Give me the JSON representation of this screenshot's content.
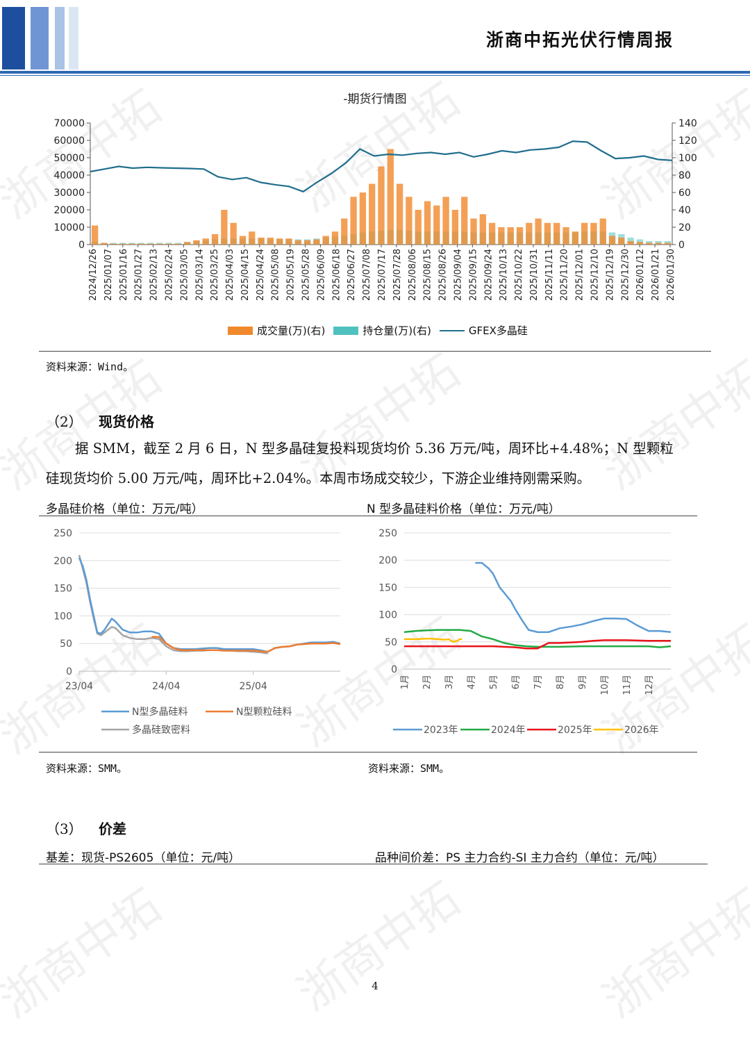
{
  "header": {
    "title": "浙商中拓光伏行情周报"
  },
  "watermark": {
    "text": "浙商中拓"
  },
  "futures_chart": {
    "title": "-期货行情图",
    "source": "资料来源：Wind。",
    "legend": [
      "成交量(万)(右)",
      "持仓量(万)(右)",
      "GFEX多晶硅"
    ],
    "chart_data": {
      "type": "line",
      "x_ticks": [
        "2024/12/26",
        "2025/01/07",
        "2025/01/16",
        "2025/01/27",
        "2025/02/13",
        "2025/02/24",
        "2025/03/05",
        "2025/03/14",
        "2025/03/25",
        "2025/04/03",
        "2025/04/15",
        "2025/04/24",
        "2025/05/08",
        "2025/05/19",
        "2025/05/28",
        "2025/06/09",
        "2025/06/18",
        "2025/06/27",
        "2025/07/08",
        "2025/07/17",
        "2025/07/28",
        "2025/08/06",
        "2025/08/15",
        "2025/08/26",
        "2025/09/04",
        "2025/09/15",
        "2025/09/24",
        "2025/10/13",
        "2025/10/22",
        "2025/10/31",
        "2025/11/11",
        "2025/11/20",
        "2025/12/01",
        "2025/12/10",
        "2025/12/19",
        "2025/12/30",
        "2026/01/12",
        "2026/01/21",
        "2026/01/30"
      ],
      "y_left_ticks": [
        "0",
        "10000",
        "20000",
        "30000",
        "40000",
        "50000",
        "60000",
        "70000"
      ],
      "y_right_ticks": [
        "0",
        "20",
        "40",
        "60",
        "80",
        "100",
        "120",
        "140"
      ],
      "ylim_left": [
        0,
        70000
      ],
      "ylim_right": [
        0,
        140
      ],
      "series": [
        {
          "name": "GFEX多晶硅",
          "axis": "left",
          "color": "#1f6e8c",
          "values": [
            42000,
            43500,
            45000,
            44000,
            44500,
            44200,
            44000,
            43800,
            43500,
            39000,
            37500,
            38500,
            35800,
            34500,
            33500,
            30500,
            36000,
            41000,
            47000,
            55000,
            51000,
            52000,
            51500,
            52500,
            53000,
            52000,
            53000,
            50500,
            52000,
            54000,
            53000,
            54500,
            55000,
            56000,
            59500,
            59000,
            54000,
            49500,
            50000,
            51000,
            49000,
            48500
          ]
        },
        {
          "name": "成交量(万)(右)",
          "axis": "right",
          "color": "#f0882c",
          "values": [
            22,
            2,
            1,
            1,
            1,
            1,
            1,
            1,
            1,
            1,
            3,
            5,
            7,
            12,
            40,
            25,
            10,
            15,
            8,
            8,
            7,
            7,
            5,
            5,
            6,
            10,
            15,
            30,
            55,
            60,
            70,
            90,
            110,
            70,
            55,
            40,
            50,
            45,
            55,
            40,
            55,
            30,
            35,
            25,
            20,
            20,
            20,
            25,
            30,
            25,
            25,
            20,
            15,
            25,
            25,
            30,
            10,
            8,
            4,
            3,
            2,
            2,
            2
          ]
        },
        {
          "name": "持仓量(万)(右)",
          "axis": "right",
          "color": "#4fc2bf",
          "values": [
            3,
            2,
            2,
            2,
            2,
            2,
            2,
            2,
            2,
            2,
            3,
            4,
            5,
            6,
            7,
            7,
            7,
            7,
            7,
            6,
            6,
            6,
            6,
            6,
            7,
            8,
            9,
            10,
            12,
            14,
            15,
            16,
            17,
            17,
            16,
            15,
            15,
            15,
            15,
            15,
            15,
            14,
            14,
            14,
            14,
            14,
            14,
            14,
            14,
            14,
            14,
            14,
            14,
            15,
            15,
            15,
            14,
            12,
            8,
            6,
            4,
            4,
            4
          ]
        }
      ]
    }
  },
  "section2": {
    "heading_num": "（2）",
    "heading_text": "现货价格",
    "para_line1": "据 SMM，截至 2 月 6 日，N 型多晶硅复投料现货均价 5.36 万元/吨，周环比+4.48%；N 型颗粒",
    "para_line2": "硅现货均价 5.00 万元/吨，周环比+2.04%。本周市场成交较少，下游企业维持刚需采购。"
  },
  "poly_price_chart": {
    "title": "多晶硅价格（单位：万元/吨）",
    "source": "资料来源：SMM。",
    "chart_data": {
      "type": "line",
      "y_ticks": [
        "0",
        "50",
        "100",
        "150",
        "200",
        "250"
      ],
      "ylim": [
        0,
        250
      ],
      "x_ticks": [
        "23/04",
        "24/04",
        "25/04"
      ],
      "x_range": [
        0,
        36
      ],
      "series": [
        {
          "name": "N型多晶硅料",
          "color": "#5b9bd5",
          "x": [
            0,
            0.5,
            1,
            1.5,
            2,
            2.5,
            3,
            3.5,
            4,
            4.5,
            5,
            6,
            7,
            8,
            9,
            10,
            11,
            12,
            13,
            14,
            15,
            16,
            17,
            18,
            19,
            20,
            21,
            22,
            23,
            24,
            25,
            26,
            27,
            28,
            29,
            30,
            31,
            32,
            33,
            34,
            35,
            36
          ],
          "values": [
            205,
            190,
            165,
            130,
            100,
            70,
            68,
            75,
            85,
            95,
            90,
            75,
            70,
            70,
            72,
            72,
            68,
            50,
            42,
            40,
            40,
            40,
            41,
            42,
            42,
            40,
            40,
            40,
            40,
            40,
            38,
            35,
            42,
            44,
            45,
            48,
            50,
            52,
            52,
            52,
            53,
            50
          ]
        },
        {
          "name": "N型颗粒硅料",
          "color": "#ed7d31",
          "x": [
            10,
            11,
            12,
            13,
            14,
            15,
            16,
            17,
            18,
            19,
            20,
            21,
            22,
            23,
            24,
            25,
            26,
            27,
            28,
            29,
            30,
            31,
            32,
            33,
            34,
            35,
            36
          ],
          "values": [
            62,
            62,
            50,
            42,
            38,
            38,
            38,
            38,
            38,
            38,
            37,
            37,
            37,
            37,
            37,
            36,
            35,
            42,
            44,
            45,
            48,
            49,
            50,
            50,
            50,
            51,
            49
          ]
        },
        {
          "name": "多晶硅致密料",
          "color": "#a5a5a5",
          "x": [
            0,
            0.5,
            1,
            1.5,
            2,
            2.5,
            3,
            3.5,
            4,
            4.5,
            5,
            6,
            7,
            8,
            9,
            10,
            11,
            12,
            13,
            14,
            15,
            16,
            17,
            18,
            19,
            20,
            21,
            22,
            23,
            24,
            25,
            26
          ],
          "values": [
            210,
            185,
            160,
            125,
            95,
            68,
            65,
            70,
            75,
            80,
            78,
            65,
            60,
            58,
            58,
            60,
            58,
            45,
            38,
            36,
            36,
            37,
            37,
            38,
            38,
            38,
            37,
            36,
            36,
            35,
            34,
            32
          ]
        }
      ]
    }
  },
  "n_type_chart": {
    "title": "N 型多晶硅料价格（单位：万元/吨）",
    "source": "资料来源：SMM。",
    "chart_data": {
      "type": "line",
      "y_ticks": [
        "0",
        "50",
        "100",
        "150",
        "200",
        "250"
      ],
      "ylim": [
        0,
        250
      ],
      "x_ticks": [
        "1月",
        "2月",
        "3月",
        "4月",
        "5月",
        "6月",
        "7月",
        "8月",
        "9月",
        "10月",
        "11月",
        "12月"
      ],
      "x_range": [
        1,
        13
      ],
      "series": [
        {
          "name": "2023年",
          "color": "#5b9bd5",
          "x": [
            4.2,
            4.5,
            4.8,
            5.0,
            5.3,
            5.5,
            5.8,
            6.0,
            6.3,
            6.6,
            7.0,
            7.5,
            8.0,
            8.5,
            9.0,
            9.5,
            10.0,
            10.5,
            11.0,
            11.5,
            12.0,
            12.5,
            13.0
          ],
          "values": [
            195,
            195,
            185,
            175,
            150,
            140,
            125,
            110,
            90,
            72,
            68,
            68,
            75,
            78,
            82,
            88,
            93,
            93,
            92,
            80,
            70,
            70,
            68
          ]
        },
        {
          "name": "2024年",
          "color": "#22aa44",
          "x": [
            1,
            1.5,
            2,
            2.5,
            3,
            3.5,
            4,
            4.5,
            5,
            5.5,
            6,
            6.5,
            7,
            7.5,
            8,
            9,
            10,
            11,
            12,
            12.5,
            13
          ],
          "values": [
            68,
            70,
            71,
            72,
            72,
            72,
            70,
            60,
            55,
            48,
            44,
            42,
            41,
            41,
            41,
            42,
            42,
            42,
            42,
            40,
            42
          ]
        },
        {
          "name": "2025年",
          "color": "#e8131b",
          "x": [
            1,
            2,
            3,
            4,
            5,
            6,
            6.5,
            7,
            7.5,
            8,
            8.5,
            9,
            9.5,
            10,
            11,
            12,
            13
          ],
          "values": [
            42,
            42,
            42,
            42,
            42,
            40,
            38,
            38,
            48,
            48,
            49,
            50,
            52,
            53,
            53,
            52,
            52
          ]
        },
        {
          "name": "2026年",
          "color": "#ffc000",
          "x": [
            1,
            1.3,
            1.6,
            2.0,
            2.2,
            2.5,
            2.8,
            3.0,
            3.2,
            3.4,
            3.5,
            3.6
          ],
          "values": [
            55,
            55,
            55,
            56,
            56,
            55,
            54,
            55,
            50,
            52,
            55,
            55
          ]
        }
      ]
    }
  },
  "section3": {
    "heading_num": "（3）",
    "heading_text": "价差",
    "left_title": "基差：现货-PS2605（单位：元/吨）",
    "right_title": "品种间价差：PS 主力合约-SI 主力合约（单位：元/吨）"
  },
  "footer": {
    "page_number": "4"
  }
}
